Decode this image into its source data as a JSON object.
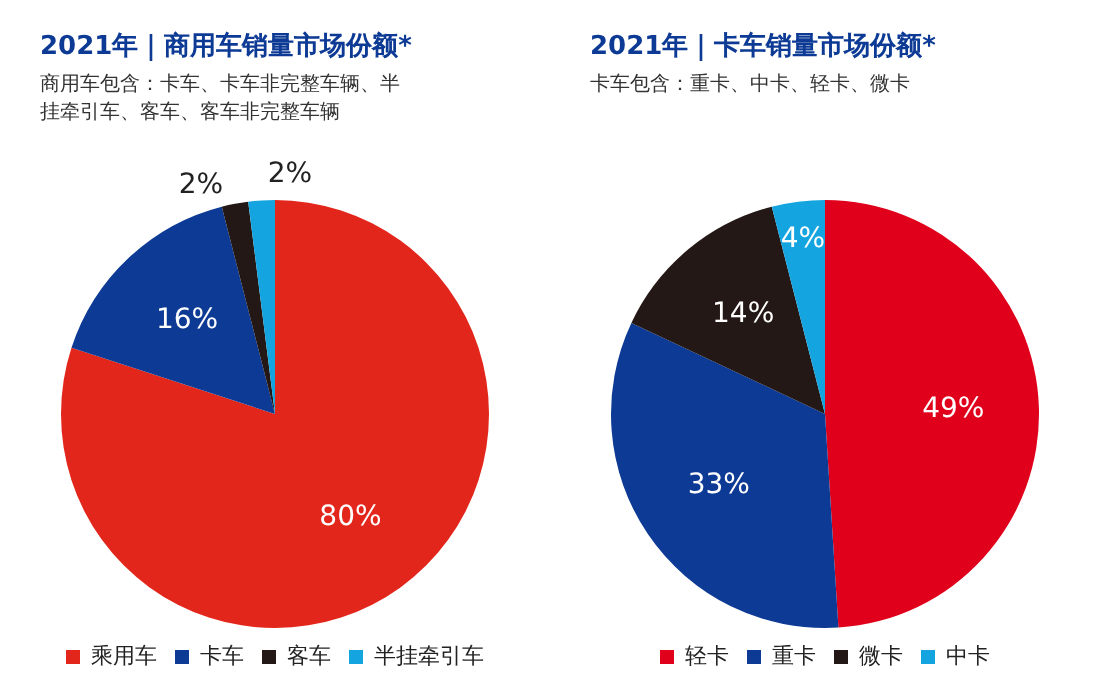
{
  "chart_data": [
    {
      "type": "pie",
      "title": "2021年｜商用车销量市场份额*",
      "subtitle": "商用车包含：卡车、卡车非完整车辆、半挂牵引车、客车、客车非完整车辆",
      "categories": [
        "乘用车",
        "卡车",
        "客车",
        "半挂牵引车"
      ],
      "values": [
        80,
        16,
        2,
        2
      ],
      "value_labels": [
        "80%",
        "16%",
        "2%",
        "2%"
      ],
      "colors": [
        "#e3261b",
        "#0d3a94",
        "#231815",
        "#14a5e0"
      ],
      "legend": "bottom"
    },
    {
      "type": "pie",
      "title": "2021年｜卡车销量市场份额*",
      "subtitle": "卡车包含：重卡、中卡、轻卡、微卡",
      "categories": [
        "轻卡",
        "重卡",
        "微卡",
        "中卡"
      ],
      "values": [
        49,
        33,
        14,
        4
      ],
      "value_labels": [
        "49%",
        "33%",
        "14%",
        "4%"
      ],
      "colors": [
        "#e0001b",
        "#0d3a94",
        "#231815",
        "#14a5e0"
      ],
      "legend": "bottom"
    }
  ]
}
